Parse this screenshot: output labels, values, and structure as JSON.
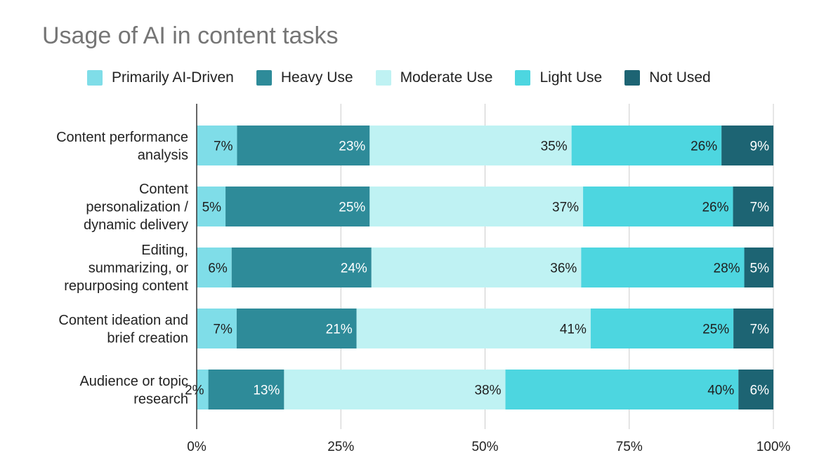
{
  "chart_data": {
    "type": "bar",
    "orientation": "horizontal",
    "stacked": "percent",
    "title": "Usage of AI in content tasks",
    "xlabel": "",
    "ylabel": "",
    "xlim": [
      0,
      100
    ],
    "x_ticks": [
      "0%",
      "25%",
      "50%",
      "75%",
      "100%"
    ],
    "legend_position": "top",
    "grid": true,
    "categories": [
      [
        "Content performance",
        "analysis"
      ],
      [
        "Content",
        "personalization /",
        "dynamic delivery"
      ],
      [
        "Editing,",
        "summarizing, or",
        "repurposing content"
      ],
      [
        "Content ideation and",
        "brief creation"
      ],
      [
        "Audience or topic",
        "research"
      ]
    ],
    "series": [
      {
        "name": "Primarily AI-Driven",
        "color": "#7fdde8",
        "label_color": "#1f1f1f",
        "values": [
          7,
          5,
          6,
          7,
          2
        ],
        "labels": [
          "7%",
          "5%",
          "6%",
          "7%",
          "2%"
        ]
      },
      {
        "name": "Heavy Use",
        "color": "#2e8b99",
        "label_color": "#ffffff",
        "values": [
          23,
          25,
          24,
          21,
          13
        ],
        "labels": [
          "23%",
          "25%",
          "24%",
          "21%",
          "13%"
        ]
      },
      {
        "name": "Moderate Use",
        "color": "#bff2f3",
        "label_color": "#1f1f1f",
        "values": [
          35,
          37,
          36,
          41,
          38
        ],
        "labels": [
          "35%",
          "37%",
          "36%",
          "41%",
          "38%"
        ]
      },
      {
        "name": "Light Use",
        "color": "#4dd6e0",
        "label_color": "#1f1f1f",
        "values": [
          26,
          26,
          28,
          25,
          40
        ],
        "labels": [
          "26%",
          "26%",
          "28%",
          "25%",
          "40%"
        ]
      },
      {
        "name": "Not Used",
        "color": "#1d6473",
        "label_color": "#ffffff",
        "values": [
          9,
          7,
          5,
          7,
          6
        ],
        "labels": [
          "9%",
          "7%",
          "5%",
          "7%",
          "6%"
        ]
      }
    ]
  }
}
